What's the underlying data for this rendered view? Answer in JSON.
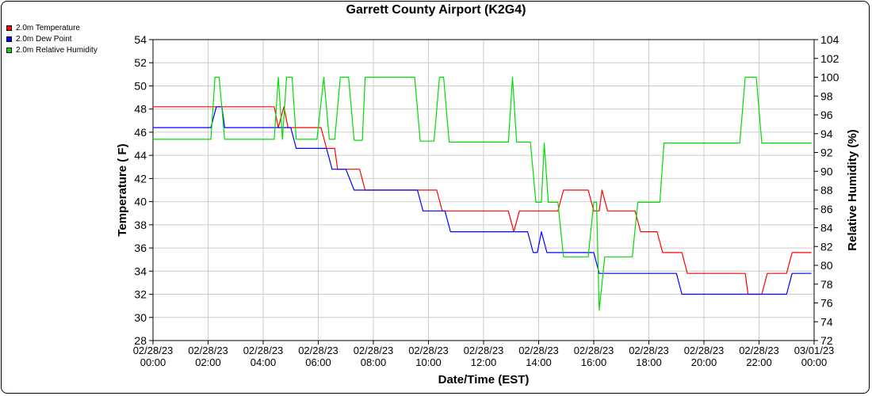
{
  "chart_data": {
    "type": "line",
    "title": "Garrett County Airport (K2G4)",
    "xlabel": "Date/Time (EST)",
    "ylabel_left": "Temperature ( F)",
    "ylabel_right": "Relative Humidity (%)",
    "ylim_left": [
      28,
      54
    ],
    "yticks_left": [
      28,
      30,
      32,
      34,
      36,
      38,
      40,
      42,
      44,
      46,
      48,
      50,
      52,
      54
    ],
    "ylim_right": [
      72,
      104
    ],
    "yticks_right": [
      72,
      74,
      76,
      78,
      80,
      82,
      84,
      86,
      88,
      90,
      92,
      94,
      96,
      98,
      100,
      102,
      104
    ],
    "xlim_hours": [
      0,
      24
    ],
    "x_ticks": [
      {
        "h": 0,
        "l1": "02/28/23",
        "l2": "00:00"
      },
      {
        "h": 2,
        "l1": "02/28/23",
        "l2": "02:00"
      },
      {
        "h": 4,
        "l1": "02/28/23",
        "l2": "04:00"
      },
      {
        "h": 6,
        "l1": "02/28/23",
        "l2": "06:00"
      },
      {
        "h": 8,
        "l1": "02/28/23",
        "l2": "08:00"
      },
      {
        "h": 10,
        "l1": "02/28/23",
        "l2": "10:00"
      },
      {
        "h": 12,
        "l1": "02/28/23",
        "l2": "12:00"
      },
      {
        "h": 14,
        "l1": "02/28/23",
        "l2": "14:00"
      },
      {
        "h": 16,
        "l1": "02/28/23",
        "l2": "16:00"
      },
      {
        "h": 18,
        "l1": "02/28/23",
        "l2": "18:00"
      },
      {
        "h": 20,
        "l1": "02/28/23",
        "l2": "20:00"
      },
      {
        "h": 22,
        "l1": "02/28/23",
        "l2": "22:00"
      },
      {
        "h": 24,
        "l1": "03/01/23",
        "l2": "00:00"
      }
    ],
    "grid": true,
    "legend_position": "top-left",
    "series": [
      {
        "name": "2.0m Temperature",
        "color": "#ff0000",
        "axis": "left",
        "points": [
          [
            0,
            48.2
          ],
          [
            4.4,
            48.2
          ],
          [
            4.55,
            46.4
          ],
          [
            4.75,
            48.2
          ],
          [
            4.9,
            46.4
          ],
          [
            6.0,
            46.4
          ],
          [
            6.1,
            46.4
          ],
          [
            6.3,
            44.6
          ],
          [
            6.6,
            44.6
          ],
          [
            6.7,
            42.8
          ],
          [
            7.5,
            42.8
          ],
          [
            7.7,
            41.0
          ],
          [
            10.3,
            41.0
          ],
          [
            10.5,
            39.2
          ],
          [
            12.9,
            39.2
          ],
          [
            13.1,
            37.4
          ],
          [
            13.3,
            39.2
          ],
          [
            14.7,
            39.2
          ],
          [
            14.9,
            41.0
          ],
          [
            15.8,
            41.0
          ],
          [
            16.0,
            39.2
          ],
          [
            16.2,
            39.2
          ],
          [
            16.3,
            41.0
          ],
          [
            16.5,
            39.2
          ],
          [
            17.5,
            39.2
          ],
          [
            17.7,
            37.4
          ],
          [
            18.3,
            37.4
          ],
          [
            18.5,
            35.6
          ],
          [
            19.2,
            35.6
          ],
          [
            19.4,
            33.8
          ],
          [
            21.5,
            33.8
          ],
          [
            21.6,
            32.0
          ],
          [
            22.1,
            32.0
          ],
          [
            22.3,
            33.8
          ],
          [
            23.0,
            33.8
          ],
          [
            23.2,
            35.6
          ],
          [
            23.9,
            35.6
          ]
        ]
      },
      {
        "name": "2.0m Dew Point",
        "color": "#0000ff",
        "axis": "left",
        "points": [
          [
            0,
            46.4
          ],
          [
            2.1,
            46.4
          ],
          [
            2.3,
            48.2
          ],
          [
            2.5,
            48.2
          ],
          [
            2.6,
            46.4
          ],
          [
            5.0,
            46.4
          ],
          [
            5.2,
            44.6
          ],
          [
            6.3,
            44.6
          ],
          [
            6.5,
            42.8
          ],
          [
            7.0,
            42.8
          ],
          [
            7.3,
            41.0
          ],
          [
            9.6,
            41.0
          ],
          [
            9.8,
            39.2
          ],
          [
            10.6,
            39.2
          ],
          [
            10.8,
            37.4
          ],
          [
            13.6,
            37.4
          ],
          [
            13.8,
            35.6
          ],
          [
            13.95,
            35.6
          ],
          [
            14.1,
            37.4
          ],
          [
            14.3,
            35.6
          ],
          [
            16.0,
            35.6
          ],
          [
            16.2,
            33.8
          ],
          [
            19.0,
            33.8
          ],
          [
            19.2,
            32.0
          ],
          [
            23.0,
            32.0
          ],
          [
            23.2,
            33.8
          ],
          [
            23.9,
            33.8
          ]
        ]
      },
      {
        "name": "2.0m Relative Humidity",
        "color": "#00dd00",
        "axis": "right",
        "points": [
          [
            0,
            93.4
          ],
          [
            2.1,
            93.4
          ],
          [
            2.25,
            100.0
          ],
          [
            2.4,
            100.0
          ],
          [
            2.6,
            93.4
          ],
          [
            4.4,
            93.4
          ],
          [
            4.55,
            100.0
          ],
          [
            4.7,
            93.4
          ],
          [
            4.85,
            100.0
          ],
          [
            5.05,
            100.0
          ],
          [
            5.2,
            93.4
          ],
          [
            5.95,
            93.4
          ],
          [
            6.2,
            100.0
          ],
          [
            6.4,
            93.4
          ],
          [
            6.6,
            93.4
          ],
          [
            6.8,
            100.0
          ],
          [
            7.1,
            100.0
          ],
          [
            7.3,
            93.3
          ],
          [
            7.6,
            93.3
          ],
          [
            7.7,
            100.0
          ],
          [
            9.5,
            100.0
          ],
          [
            9.7,
            93.2
          ],
          [
            10.2,
            93.2
          ],
          [
            10.4,
            100.0
          ],
          [
            10.55,
            100.0
          ],
          [
            10.75,
            93.1
          ],
          [
            12.9,
            93.1
          ],
          [
            13.05,
            100.0
          ],
          [
            13.2,
            93.1
          ],
          [
            13.7,
            93.1
          ],
          [
            13.9,
            86.7
          ],
          [
            14.1,
            86.7
          ],
          [
            14.2,
            93.0
          ],
          [
            14.35,
            86.7
          ],
          [
            14.7,
            86.7
          ],
          [
            14.9,
            80.9
          ],
          [
            15.8,
            80.9
          ],
          [
            16.0,
            86.7
          ],
          [
            16.1,
            86.7
          ],
          [
            16.2,
            75.2
          ],
          [
            16.4,
            80.9
          ],
          [
            17.4,
            80.9
          ],
          [
            17.6,
            86.7
          ],
          [
            18.4,
            86.7
          ],
          [
            18.55,
            93.0
          ],
          [
            21.3,
            93.0
          ],
          [
            21.5,
            100.0
          ],
          [
            21.9,
            100.0
          ],
          [
            22.1,
            93.0
          ],
          [
            23.9,
            93.0
          ]
        ]
      }
    ]
  }
}
